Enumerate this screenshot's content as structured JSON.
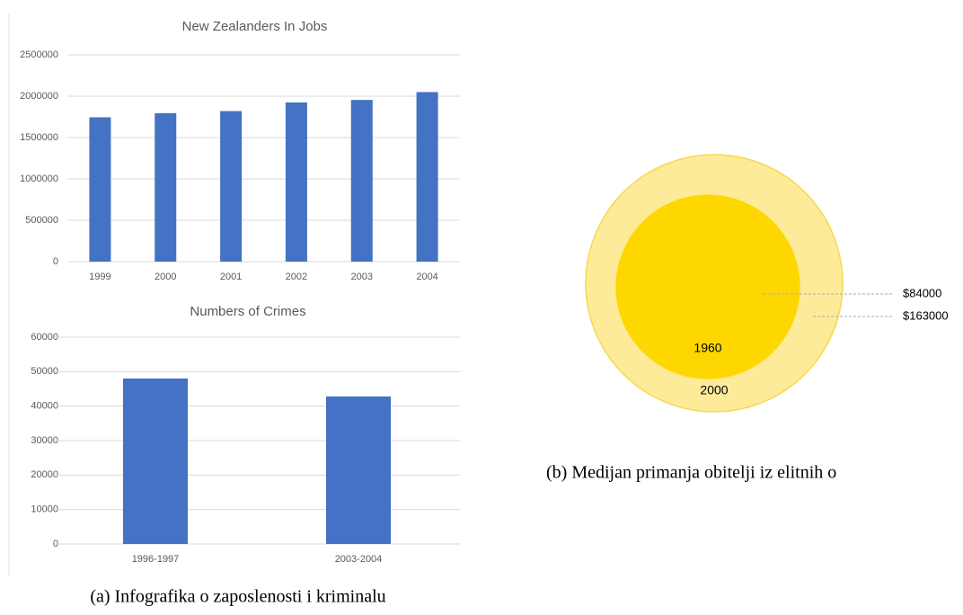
{
  "chart_data": [
    {
      "type": "bar",
      "title": "New Zealanders In Jobs",
      "categories": [
        "1999",
        "2000",
        "2001",
        "2002",
        "2003",
        "2004"
      ],
      "values": [
        1745000,
        1795000,
        1820000,
        1925000,
        1955000,
        2050000
      ],
      "color": "#4472c4",
      "ylim": [
        0,
        2500000
      ],
      "yticks": [
        0,
        500000,
        1000000,
        1500000,
        2000000,
        2500000
      ],
      "grid": true
    },
    {
      "type": "bar",
      "title": "Numbers of Crimes",
      "categories": [
        "1996-1997",
        "2003-2004"
      ],
      "values": [
        48000,
        42800
      ],
      "color": "#4472c4",
      "ylim": [
        0,
        60000
      ],
      "yticks": [
        0,
        10000,
        20000,
        30000,
        40000,
        50000,
        60000
      ],
      "grid": true
    },
    {
      "type": "nested-circle",
      "categories": [
        "1960",
        "2000"
      ],
      "values": [
        84000,
        163000
      ],
      "value_labels": [
        "$84000",
        "$163000"
      ],
      "colors": [
        "#ffd700",
        "#fdeb9a"
      ]
    }
  ],
  "captions": [
    "(a) Infografika o zaposlenosti i kriminalu",
    "(b) Medijan primanja obitelji iz elitnih o"
  ]
}
